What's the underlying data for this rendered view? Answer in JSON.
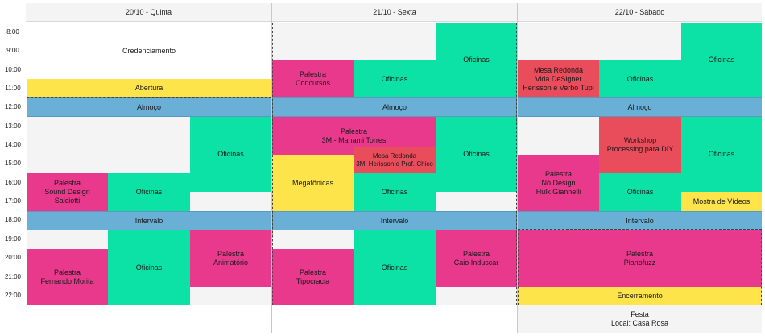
{
  "days": [
    {
      "label": "20/10 - Quinta"
    },
    {
      "label": "21/10 - Sexta"
    },
    {
      "label": "22/10 - Sábado"
    }
  ],
  "times": [
    "8:00",
    "9:00",
    "10:00",
    "11:00",
    "12:00",
    "13:00",
    "14:00",
    "15:00",
    "16:00",
    "17:00",
    "18:00",
    "19:00",
    "20:00",
    "21:00",
    "22:00"
  ],
  "breaks": {
    "lunch": "Almoço",
    "interval": "Intervalo"
  },
  "day1": {
    "credenciamento": "Credenciamento",
    "abertura": "Abertura",
    "oficinas_a": "Oficinas",
    "sound_design": "Palestra\nSound Design\nSalciotti",
    "oficinas_b": "Oficinas",
    "fernando": "Palestra\nFernando Morita",
    "oficinas_c": "Oficinas",
    "animatorio": "Palestra\nAnimatório"
  },
  "day2": {
    "concursos": "Palestra\nConcursos",
    "oficinas_a": "Oficinas",
    "oficinas_b": "Oficinas",
    "manami": "Palestra\n3M - Manami Torres",
    "mesa": "Mesa Redonda\n3M, Herisson e Prof. Chico",
    "oficinas_c": "Oficinas",
    "megafonicas": "Megafônicas",
    "oficinas_d": "Oficinas",
    "tipocracia": "Palestra\nTipocracia",
    "oficinas_e": "Oficinas",
    "caio": "Palestra\nCaio Induscar"
  },
  "day3": {
    "mesa": "Mesa Redonda\nVida DeSigner\nHerisson e Verbo Tupi",
    "oficinas_a": "Oficinas",
    "oficinas_b": "Oficinas",
    "workshop": "Workshop\nProcessing para DIY",
    "oficinas_c": "Oficinas",
    "no_design": "Palestra\nNó Design\nHulk Giannelli",
    "oficinas_d": "Oficinas",
    "mostra": "Mostra de Vídeos",
    "pianofuzz": "Palestra\nPianofuzz",
    "encerramento": "Encerramento",
    "festa": "Festa\nLocal: Casa Rosa"
  },
  "colors": {
    "pink": "#e8398c",
    "green": "#0ce2a6",
    "yellow": "#fde44b",
    "red": "#e94c5a",
    "blue": "#6aafd6",
    "gray": "#f4f4f4"
  }
}
